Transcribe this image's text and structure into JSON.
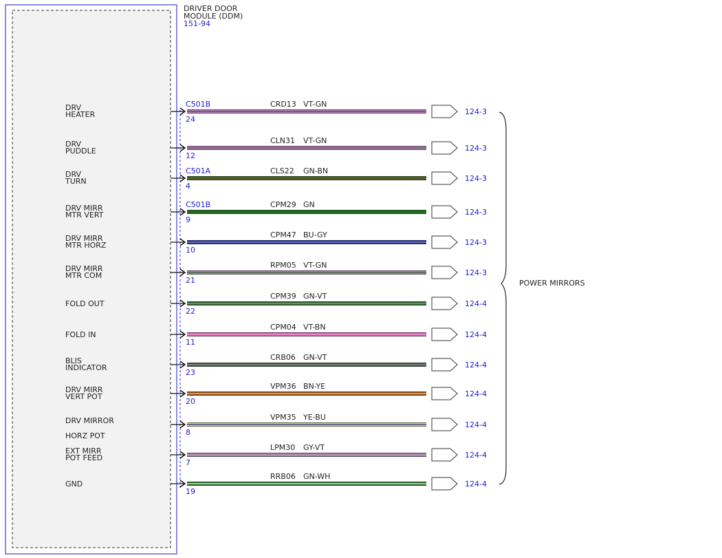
{
  "module": {
    "title_line1": "DRIVER DOOR",
    "title_line2": "MODULE (DDM)",
    "ref": "151-94"
  },
  "destination": {
    "label": "POWER MIRRORS"
  },
  "colors": {
    "VT": "#c878c8",
    "GN": "#1e6e1e",
    "BN": "#a0461e",
    "BU": "#1428c8",
    "GY": "#969696",
    "YE": "#e6e632",
    "WH": "#ffffff",
    "BK": "#000000",
    "VT-BN": "#e05ab4",
    "outline": "#4040c8",
    "label_blue": "#1a1ad6"
  },
  "circuits": [
    {
      "label1": "DRV",
      "label2": "HEATER",
      "connector": "C501B",
      "pin": "24",
      "circuit": "CRD13",
      "color_code": "VT-GN",
      "ref": "124-3"
    },
    {
      "label1": "DRV",
      "label2": "PUDDLE",
      "connector": "",
      "pin": "12",
      "circuit": "CLN31",
      "color_code": "VT-GN",
      "ref": "124-3"
    },
    {
      "label1": "DRV",
      "label2": "TURN",
      "connector": "C501A",
      "pin": "4",
      "circuit": "CLS22",
      "color_code": "GN-BN",
      "ref": "124-3"
    },
    {
      "label1": "DRV MIRR",
      "label2": "MTR VERT",
      "connector": "C501B",
      "pin": "9",
      "circuit": "CPM29",
      "color_code": "GN",
      "ref": "124-3"
    },
    {
      "label1": "DRV MIRR",
      "label2": "MTR HORZ",
      "connector": "",
      "pin": "10",
      "circuit": "CPM47",
      "color_code": "BU-GY",
      "ref": "124-3"
    },
    {
      "label1": "DRV MIRR",
      "label2": "MTR COM",
      "connector": "",
      "pin": "21",
      "circuit": "RPM05",
      "color_code": "VT-GN",
      "ref": "124-3"
    },
    {
      "label1": "FOLD OUT",
      "label2": "",
      "connector": "",
      "pin": "22",
      "circuit": "CPM39",
      "color_code": "GN-VT",
      "ref": "124-4"
    },
    {
      "label1": "FOLD IN",
      "label2": "",
      "connector": "",
      "pin": "11",
      "circuit": "CPM04",
      "color_code": "VT-BN",
      "ref": "124-4"
    },
    {
      "label1": "BLIS",
      "label2": "INDICATOR",
      "connector": "",
      "pin": "23",
      "circuit": "CRB06",
      "color_code": "GN-VT",
      "ref": "124-4"
    },
    {
      "label1": "DRV MIRR",
      "label2": "VERT POT",
      "connector": "",
      "pin": "20",
      "circuit": "VPM36",
      "color_code": "BN-YE",
      "ref": "124-4"
    },
    {
      "label1": "DRV MIRROR",
      "label2": "HORZ POT",
      "connector": "",
      "pin": "8",
      "circuit": "VPM35",
      "color_code": "YE-BU",
      "ref": "124-4"
    },
    {
      "label1": "EXT MIRR",
      "label2": "POT FEED",
      "connector": "",
      "pin": "7",
      "circuit": "LPM30",
      "color_code": "GY-VT",
      "ref": "124-4"
    },
    {
      "label1": "GND",
      "label2": "",
      "connector": "",
      "pin": "19",
      "circuit": "RRB06",
      "color_code": "GN-WH",
      "ref": "124-4"
    }
  ]
}
